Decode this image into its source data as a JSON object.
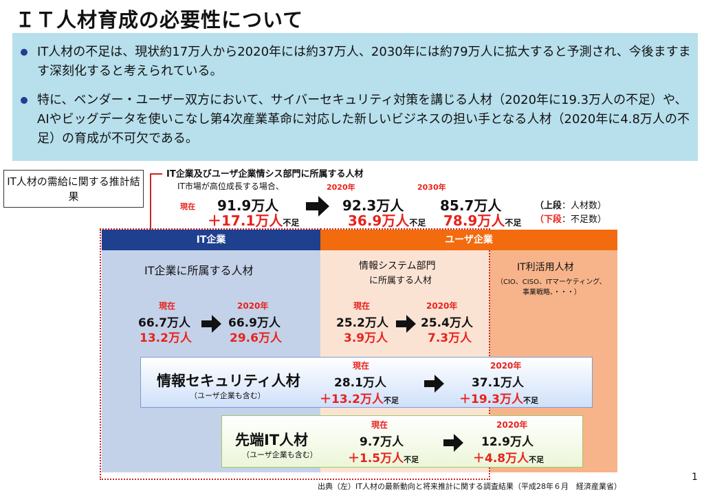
{
  "title": "ＩＴ人材育成の必要性について",
  "bullets": [
    "IT人材の不足は、現状約17万人から2020年には約37万人、2030年には約79万人に拡大すると予測され、今後ますます深刻化すると考えられている。",
    "特に、ベンダー・ユーザー双方において、サイバーセキュリティ対策を講じる人材（2020年に19.3万人の不足）や、AIやビッグデータを使いこなし第4次産業革命に対応した新しいビジネスの担い手となる人材（2020年に4.8万人の不足）の育成が不可欠である。"
  ],
  "supply_label": "IT人材の需給に関する推計結果",
  "overall": {
    "heading": "IT企業及びユーザ企業情シス部門に所属する人材",
    "condition": "IT市場が高位成長する場合、",
    "now_label": "現在",
    "now_value": "91.9万人",
    "now_shortage": "＋17.1万人",
    "y2020_label": "2020年",
    "y2020_value": "92.3万人",
    "y2020_shortage": "36.9万人",
    "y2030_label": "2030年",
    "y2030_value": "85.7万人",
    "y2030_shortage": "78.9万人",
    "shortage_suffix": "不足",
    "legend_upper_key": "（上段",
    "legend_upper_val": "：人材数）",
    "legend_lower_key": "（下段",
    "legend_lower_val": "：不足数）"
  },
  "headers": {
    "it": "IT企業",
    "user": "ユーザ企業"
  },
  "it_panel": {
    "title": "IT企業に所属する人材",
    "now_label": "現在",
    "now_value": "66.7万人",
    "now_shortage": "13.2万人",
    "y_label": "2020年",
    "y_value": "66.9万人",
    "y_shortage": "29.6万人"
  },
  "sys_panel": {
    "title1": "情報システム部門",
    "title2": "に所属する人材",
    "now_label": "現在",
    "now_value": "25.2万人",
    "now_shortage": "3.9万人",
    "y_label": "2020年",
    "y_value": "25.4万人",
    "y_shortage": "7.3万人"
  },
  "util_panel": {
    "title": "IT利活用人材",
    "note1": "（CIO、CISO、ITマーケティング、",
    "note2": "事業戦略、・・・）"
  },
  "security": {
    "title": "情報セキュリティ人材",
    "sub": "（ユーザ企業も含む）",
    "now_label": "現在",
    "now_value": "28.1万人",
    "now_shortage": "＋13.2万人",
    "y_label": "2020年",
    "y_value": "37.1万人",
    "y_shortage": "＋19.3万人",
    "suffix": "不足"
  },
  "advanced": {
    "title": "先端IT人材",
    "sub": "（ユーザ企業も含む）",
    "now_label": "現在",
    "now_value": "9.7万人",
    "now_shortage": "＋1.5万人",
    "y_label": "2020年",
    "y_value": "12.9万人",
    "y_shortage": "＋4.8万人",
    "suffix": "不足"
  },
  "source": "出典（左）IT人材の最新動向と将来推計に関する調査結果（平成28年６月　経済産業省）",
  "page_number": "1"
}
